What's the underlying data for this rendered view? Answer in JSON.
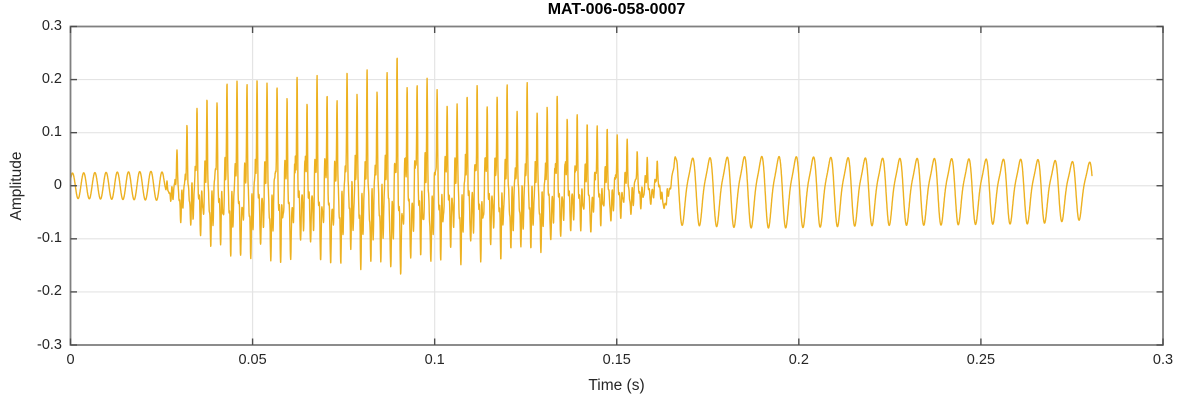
{
  "figure": {
    "kind": "matlab-style waveform plot"
  },
  "chart_data": {
    "type": "line",
    "title": "MAT-006-058-0007",
    "xlabel": "Time (s)",
    "ylabel": "Amplitude",
    "xlim": [
      0,
      0.3
    ],
    "ylim": [
      -0.3,
      0.3
    ],
    "grid": true,
    "box": true,
    "legend": null,
    "line_color": "#EDB120",
    "background_color": "#FFFFFF",
    "axis_box_color": "#808080",
    "grid_color": "#E4E4E4",
    "tick_mark_color": "#4D4D4D",
    "text_color": "#262626",
    "xticks": {
      "values": [
        0,
        0.05,
        0.1,
        0.15,
        0.2,
        0.25,
        0.3
      ],
      "labels": [
        "0",
        "0.05",
        "0.1",
        "0.15",
        "0.2",
        "0.25",
        "0.3"
      ]
    },
    "yticks": {
      "values": [
        0.3,
        0.2,
        0.1,
        0,
        -0.1,
        -0.2,
        -0.3
      ],
      "labels": [
        "0.3",
        "0.2",
        "0.1",
        "0",
        "-0.1",
        "-0.2",
        "-0.3"
      ]
    },
    "description": "Speech-like audio waveform: a quiet ~325 Hz tone from 0 to ~0.027 s (amplitude ~0.03), a dense voiced burst from ~0.027 to ~0.165 s with spiky pitch pulses (~364 Hz) peaking near +0.255 and dipping to about -0.2 around t=0.09-0.115 s, then a steady ~211 Hz oscillation of amplitude ~0.05-0.08 until the signal ends at ~0.28 s.",
    "signal": {
      "sample_rate": 22050,
      "duration": 0.2805,
      "peak_positive": 0.257,
      "peak_negative": -0.205,
      "lead_tone": {
        "start": 0,
        "end": 0.0285,
        "fade": 0.004,
        "freq": 325,
        "amp": 0.028,
        "phase": 0.45
      },
      "burst": {
        "start": 0.026,
        "end": 0.168,
        "f0": 364,
        "envelope": [
          [
            0.026,
            0.02
          ],
          [
            0.03,
            0.1
          ],
          [
            0.035,
            0.17
          ],
          [
            0.045,
            0.2
          ],
          [
            0.06,
            0.21
          ],
          [
            0.075,
            0.225
          ],
          [
            0.088,
            0.255
          ],
          [
            0.095,
            0.23
          ],
          [
            0.105,
            0.215
          ],
          [
            0.115,
            0.215
          ],
          [
            0.125,
            0.2
          ],
          [
            0.135,
            0.175
          ],
          [
            0.145,
            0.135
          ],
          [
            0.152,
            0.1
          ],
          [
            0.158,
            0.07
          ],
          [
            0.163,
            0.04
          ],
          [
            0.168,
            0.0
          ]
        ]
      },
      "tail": {
        "start": 0.16,
        "end": 0.2805,
        "freq": 211,
        "phase": 0.2,
        "envelope": [
          [
            0.16,
            0.0
          ],
          [
            0.166,
            0.058
          ],
          [
            0.19,
            0.062
          ],
          [
            0.23,
            0.058
          ],
          [
            0.262,
            0.056
          ],
          [
            0.2805,
            0.05
          ]
        ]
      }
    }
  }
}
